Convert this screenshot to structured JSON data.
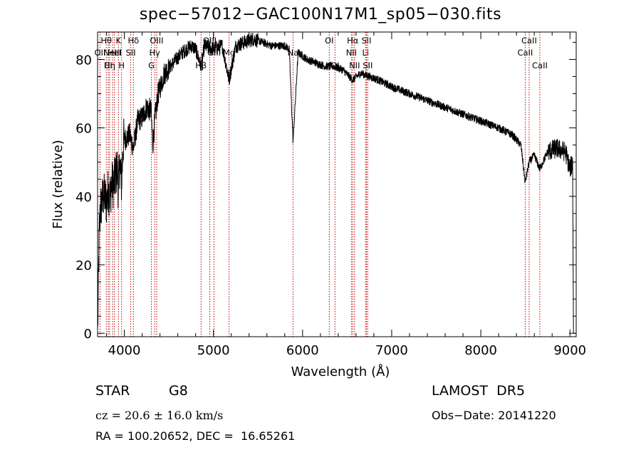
{
  "title": "spec−57012−GAC100N17M1_sp05−030.fits",
  "footer": {
    "class_label": "STAR",
    "subclass_label": "G8",
    "survey": "LAMOST  DR5",
    "cz_text": "cz = 20.6 ± 16.0 km/s",
    "obs_date": "Obs−Date: 20141220",
    "radec": "RA = 100.20652, DEC =  16.65261"
  },
  "chart_data": {
    "type": "line",
    "xlabel": "Wavelength (Å)",
    "ylabel": "Flux (relative)",
    "xlim": [
      3700,
      9070
    ],
    "ylim": [
      -1,
      88
    ],
    "xticks": [
      4000,
      5000,
      6000,
      7000,
      8000,
      9000
    ],
    "yticks": [
      0,
      20,
      40,
      60,
      80
    ],
    "spectrum_anchors": {
      "x": [
        3700,
        3705,
        3712,
        3720,
        3730,
        3745,
        3760,
        3780,
        3800,
        3820,
        3840,
        3860,
        3880,
        3900,
        3920,
        3933,
        3950,
        3968,
        3990,
        4020,
        4060,
        4102,
        4150,
        4200,
        4250,
        4300,
        4320,
        4340,
        4380,
        4450,
        4550,
        4650,
        4750,
        4800,
        4861,
        4900,
        5000,
        5100,
        5175,
        5250,
        5350,
        5450,
        5550,
        5650,
        5750,
        5800,
        5850,
        5893,
        5950,
        6050,
        6150,
        6250,
        6350,
        6450,
        6563,
        6650,
        6750,
        6850,
        7000,
        7200,
        7400,
        7600,
        7800,
        8000,
        8200,
        8350,
        8450,
        8498,
        8542,
        8600,
        8662,
        8750,
        8850,
        8950,
        9000,
        9030,
        9040,
        9060
      ],
      "y": [
        1,
        6,
        20,
        30,
        36,
        38,
        40,
        40,
        38,
        42,
        40,
        44,
        43,
        46,
        48,
        42,
        50,
        44,
        56,
        57,
        58,
        54,
        62,
        63,
        66,
        65,
        55,
        62,
        70,
        76,
        79,
        82,
        84,
        83,
        78,
        84,
        83,
        84,
        74,
        84,
        85,
        86,
        85,
        84,
        84,
        84,
        83,
        56,
        82,
        80,
        79,
        78,
        78,
        77,
        74,
        76,
        75,
        74,
        72,
        70,
        68,
        66,
        64,
        62,
        60,
        58,
        55,
        44,
        50,
        52,
        48,
        53,
        54,
        53,
        48,
        50,
        0,
        0
      ]
    },
    "lines": [
      {
        "wave": 3727,
        "label": "OII",
        "row": 2
      },
      {
        "wave": 3798,
        "label": "Hθ",
        "row": 1
      },
      {
        "wave": 3820,
        "label": "CI",
        "row": 3
      },
      {
        "wave": 3835,
        "label": "Hη",
        "row": 3
      },
      {
        "wave": 3869,
        "label": "NeIII",
        "row": 2
      },
      {
        "wave": 3889,
        "label": "HeI",
        "row": 2
      },
      {
        "wave": 3934,
        "label": "K",
        "row": 1
      },
      {
        "wave": 3969,
        "label": "H",
        "row": 3
      },
      {
        "wave": 4072,
        "label": "SII",
        "row": 2
      },
      {
        "wave": 4102,
        "label": "Hδ",
        "row": 1
      },
      {
        "wave": 4304,
        "label": "G",
        "row": 3
      },
      {
        "wave": 4341,
        "label": "Hγ",
        "row": 2
      },
      {
        "wave": 4363,
        "label": "OIII",
        "row": 1
      },
      {
        "wave": 4861,
        "label": "Hβ",
        "row": 3
      },
      {
        "wave": 4959,
        "label": "OIII",
        "row": 1
      },
      {
        "wave": 5007,
        "label": "OIII",
        "row": 2
      },
      {
        "wave": 5175,
        "label": "Mg",
        "row": 4
      },
      {
        "wave": 5893,
        "label": "Na",
        "row": 2
      },
      {
        "wave": 6300,
        "label": "OI",
        "row": 1
      },
      {
        "wave": 6364,
        "label": "OI",
        "row": 3
      },
      {
        "wave": 6548,
        "label": "NII",
        "row": 2
      },
      {
        "wave": 6563,
        "label": "Hα",
        "row": 1
      },
      {
        "wave": 6583,
        "label": "NII",
        "row": 3
      },
      {
        "wave": 6707,
        "label": "Li",
        "row": 2
      },
      {
        "wave": 6717,
        "label": "SII",
        "row": 1
      },
      {
        "wave": 6731,
        "label": "SII",
        "row": 3
      },
      {
        "wave": 8498,
        "label": "CaII",
        "row": 2
      },
      {
        "wave": 8542,
        "label": "CaII",
        "row": 1
      },
      {
        "wave": 8662,
        "label": "CaII",
        "row": 3
      }
    ],
    "colors": {
      "line_markers": "#c00000",
      "spectrum": "#000000"
    },
    "grid": false,
    "legend": "none"
  }
}
